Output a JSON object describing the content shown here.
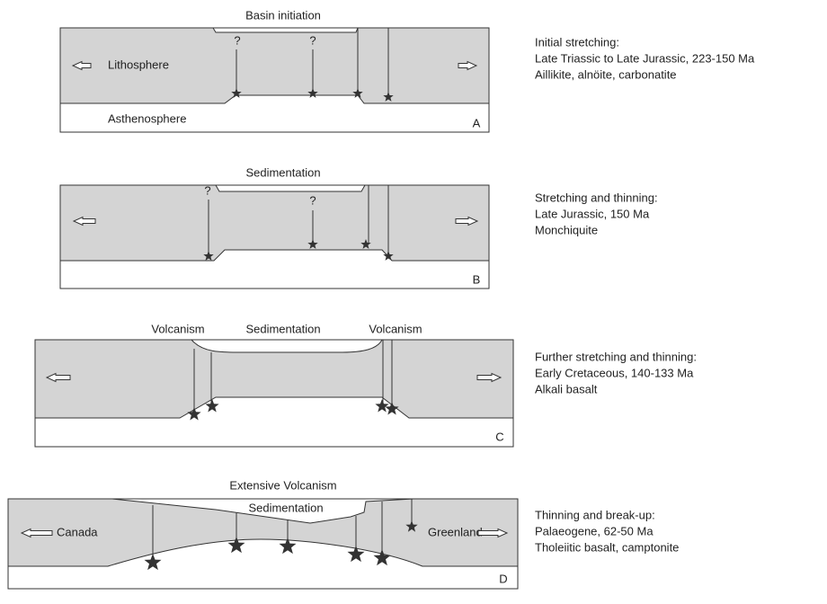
{
  "panels": [
    {
      "labels": [
        "Basin initiation"
      ],
      "inner": [
        "Lithosphere",
        "Asthenosphere"
      ],
      "marks": [
        "?",
        "?"
      ],
      "letter": "A",
      "description": [
        "Initial stretching:",
        "Late Triassic to Late Jurassic, 223-150 Ma",
        "Aillikite, alnöite, carbonatite"
      ]
    },
    {
      "labels": [
        "Sedimentation"
      ],
      "marks": [
        "?",
        "?"
      ],
      "letter": "B",
      "description": [
        "Stretching and thinning:",
        "Late Jurassic, 150 Ma",
        "Monchiquite"
      ]
    },
    {
      "labels": [
        "Volcanism",
        "Sedimentation",
        "Volcanism"
      ],
      "letter": "C",
      "description": [
        "Further stretching and thinning:",
        "Early Cretaceous, 140-133 Ma",
        "Alkali basalt"
      ]
    },
    {
      "labels": [
        "Extensive Volcanism",
        "Sedimentation"
      ],
      "inner": [
        "Canada",
        "Greenland"
      ],
      "letter": "D",
      "description": [
        "Thinning and break-up:",
        "Palaeogene, 62-50 Ma",
        "Tholeiitic basalt, camptonite"
      ]
    }
  ]
}
